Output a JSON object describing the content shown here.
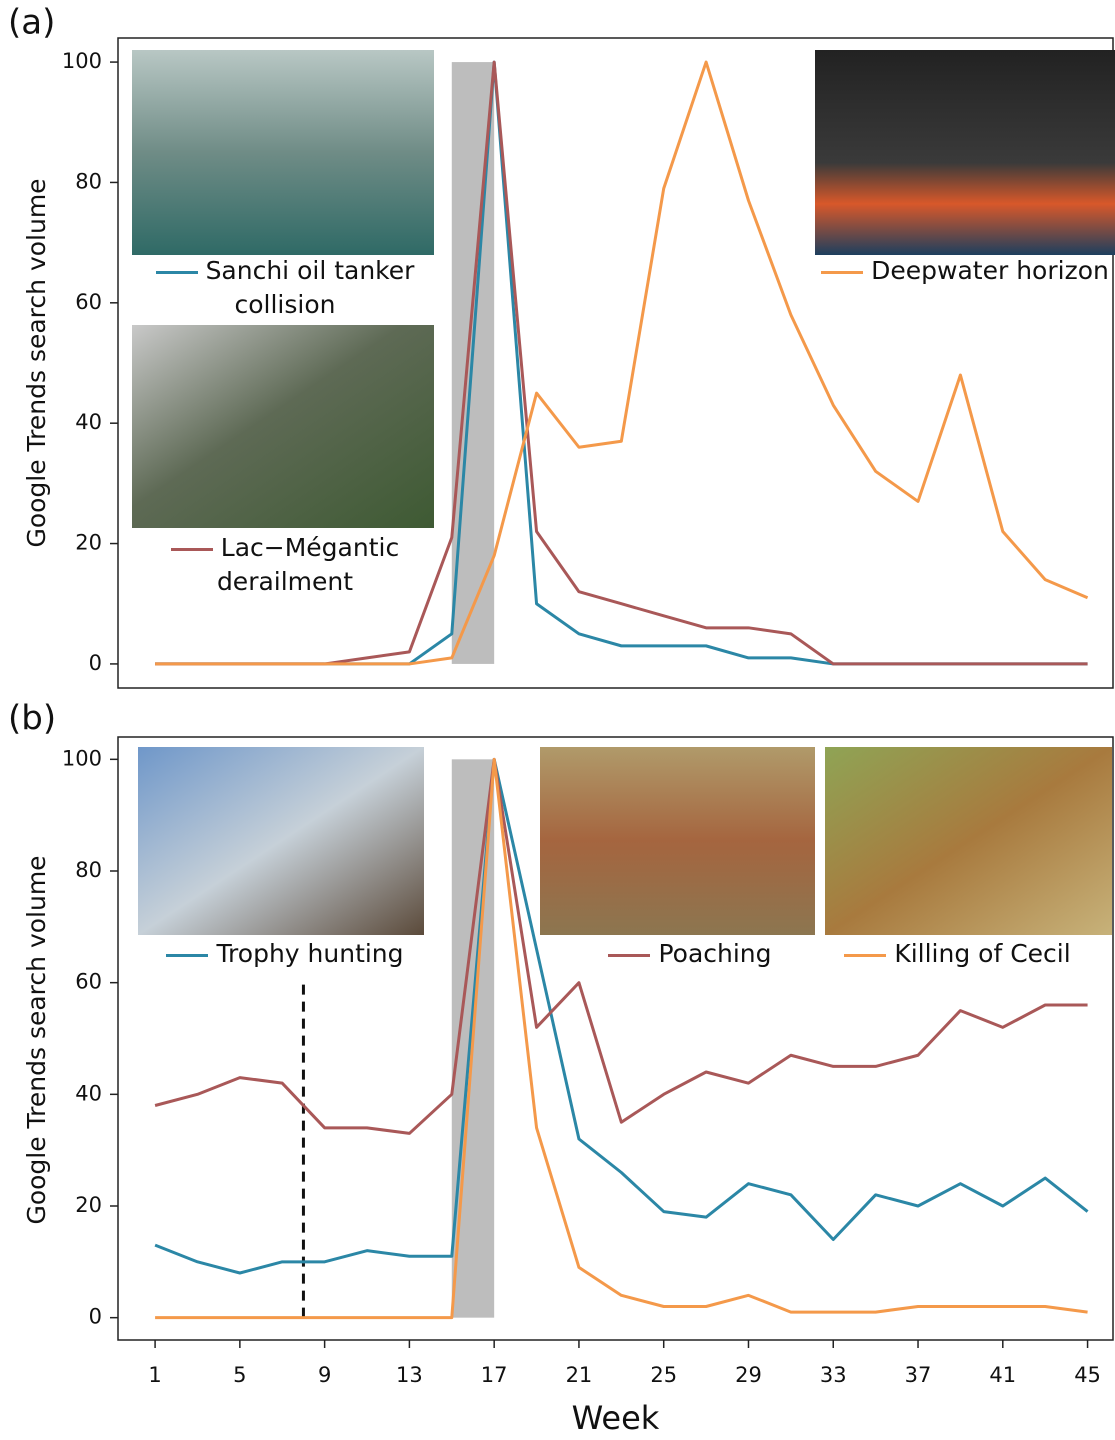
{
  "chart_data": [
    {
      "type": "line",
      "panel_label": "(a)",
      "y_label": "Google Trends search volume",
      "x": [
        1,
        3,
        5,
        7,
        9,
        11,
        13,
        15,
        17,
        19,
        21,
        23,
        25,
        27,
        29,
        31,
        33,
        35,
        37,
        39,
        41,
        43,
        45
      ],
      "xlim": [
        -0.75,
        46.2
      ],
      "ylim": [
        -4,
        104
      ],
      "yticks": [
        0,
        20,
        40,
        60,
        80,
        100
      ],
      "shaded_region": {
        "x": [
          15,
          17
        ],
        "y": [
          0,
          100
        ],
        "color": "#bdbdbd"
      },
      "series": [
        {
          "name": "Sanchi oil tanker collision",
          "color": "#2b87a6",
          "values": [
            0,
            0,
            0,
            0,
            0,
            0,
            0,
            5,
            100,
            10,
            5,
            3,
            3,
            3,
            1,
            1,
            0,
            0,
            0,
            0,
            0,
            0,
            0
          ]
        },
        {
          "name": "Lac−Mégantic derailment",
          "color": "#a95858",
          "values": [
            0,
            0,
            0,
            0,
            0,
            1,
            2,
            21,
            100,
            22,
            12,
            10,
            8,
            6,
            6,
            5,
            0,
            0,
            0,
            0,
            0,
            0,
            0
          ]
        },
        {
          "name": "Deepwater horizon",
          "color": "#f4994a",
          "values": [
            0,
            0,
            0,
            0,
            0,
            0,
            0,
            1,
            18,
            45,
            36,
            37,
            79,
            100,
            77,
            58,
            43,
            32,
            27,
            48,
            22,
            14,
            11
          ]
        }
      ]
    },
    {
      "type": "line",
      "panel_label": "(b)",
      "y_label": "Google Trends search volume",
      "x_label": "Week",
      "x": [
        1,
        3,
        5,
        7,
        9,
        11,
        13,
        15,
        17,
        19,
        21,
        23,
        25,
        27,
        29,
        31,
        33,
        35,
        37,
        39,
        41,
        43,
        45
      ],
      "xlim": [
        -0.75,
        46.2
      ],
      "ylim": [
        -4,
        104
      ],
      "yticks": [
        0,
        20,
        40,
        60,
        80,
        100
      ],
      "xticks": [
        1,
        5,
        9,
        13,
        17,
        21,
        25,
        29,
        33,
        37,
        41,
        45
      ],
      "shaded_region": {
        "x": [
          15,
          17
        ],
        "y": [
          0,
          100
        ],
        "color": "#bdbdbd"
      },
      "vline": {
        "x": 8,
        "y": [
          0,
          60
        ]
      },
      "series": [
        {
          "name": "Trophy hunting",
          "color": "#2b87a6",
          "values": [
            13,
            10,
            8,
            10,
            10,
            12,
            11,
            11,
            100,
            66,
            32,
            26,
            19,
            18,
            24,
            22,
            14,
            22,
            20,
            24,
            20,
            25,
            19
          ]
        },
        {
          "name": "Poaching",
          "color": "#a95858",
          "values": [
            38,
            40,
            43,
            42,
            34,
            34,
            33,
            40,
            100,
            52,
            60,
            35,
            40,
            44,
            42,
            47,
            45,
            45,
            47,
            55,
            52,
            56,
            56
          ]
        },
        {
          "name": "Killing of Cecil",
          "color": "#f4994a",
          "values": [
            0,
            0,
            0,
            0,
            0,
            0,
            0,
            0,
            100,
            34,
            9,
            4,
            2,
            2,
            4,
            1,
            1,
            1,
            2,
            2,
            2,
            2,
            1
          ]
        }
      ]
    }
  ]
}
